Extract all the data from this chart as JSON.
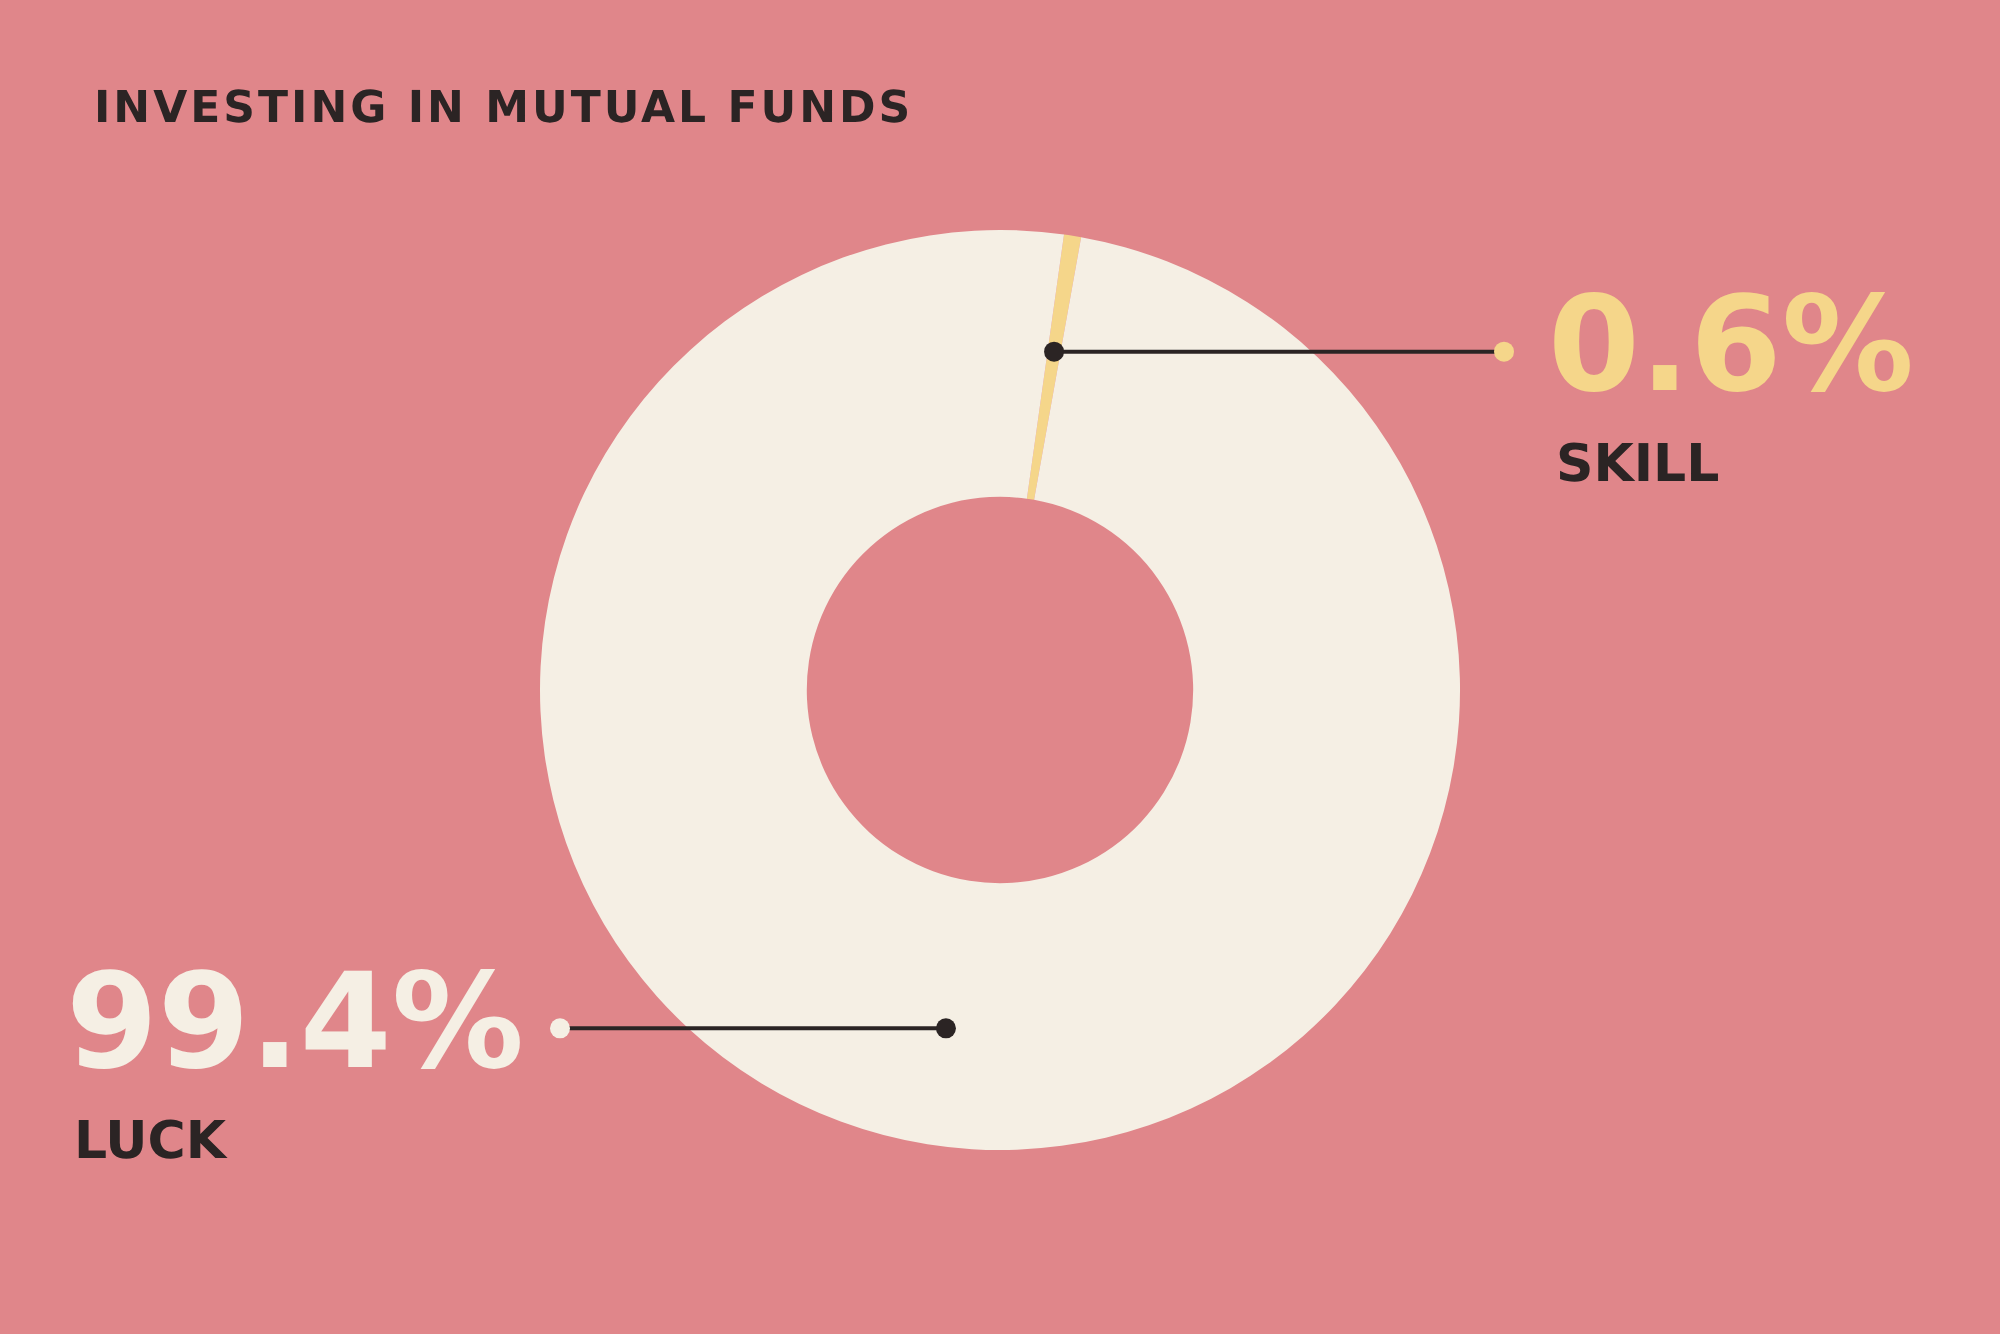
{
  "chart_data": {
    "type": "donut",
    "title": "INVESTING IN MUTUAL FUNDS",
    "categories": [
      "SKILL",
      "LUCK"
    ],
    "values": [
      0.6,
      99.4
    ],
    "value_labels": [
      "0.6%",
      "99.4%"
    ],
    "colors": [
      "#f5d68a",
      "#f5efe4"
    ],
    "legend": false
  }
}
